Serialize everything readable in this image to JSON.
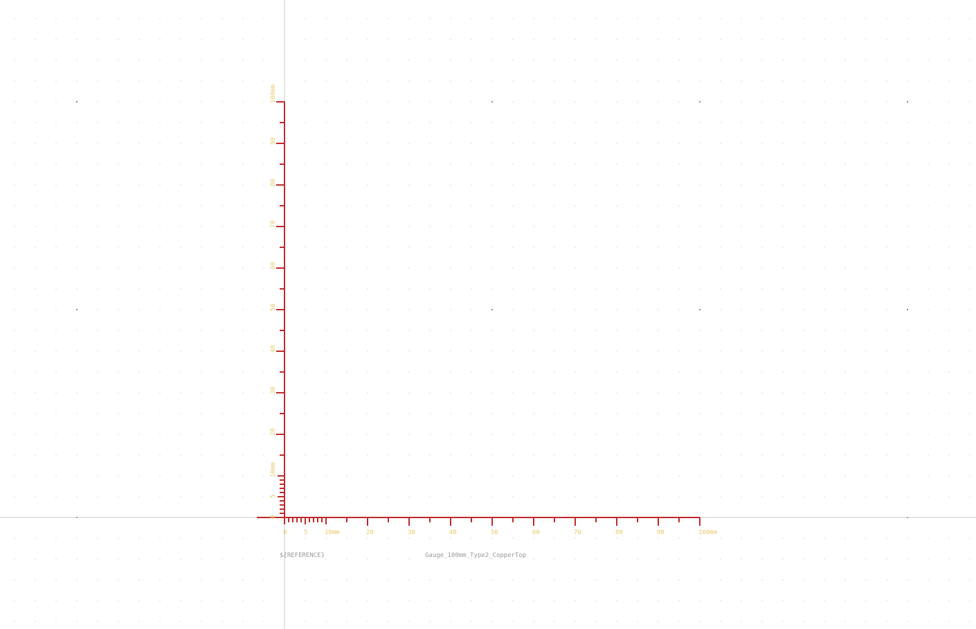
{
  "editor": {
    "name": "pcb-footprint-canvas"
  },
  "footprint": {
    "reference_field": "${REFERENCE}",
    "value_field": "Gauge_100mm_Type2_CopperTop"
  },
  "gauge": {
    "unit": "mm",
    "horizontal_labels": [
      "0",
      "5",
      "10mm",
      "20",
      "30",
      "40",
      "50",
      "60",
      "70",
      "80",
      "90",
      "100mm"
    ],
    "vertical_labels": [
      "0",
      "5",
      "10mm",
      "20",
      "30",
      "40",
      "50",
      "60",
      "70",
      "80",
      "90",
      "100mm"
    ]
  },
  "colors": {
    "background": "#ffffff",
    "grid_dot": "#b8b8b8",
    "grid_major": "#8a8a8a",
    "origin_axis": "#c8c8c8",
    "gauge_copper": "#c0282c",
    "silk_labels": "#e8c96a",
    "reference_text": "#9a9a9a",
    "value_text": "#9a9a9a"
  }
}
